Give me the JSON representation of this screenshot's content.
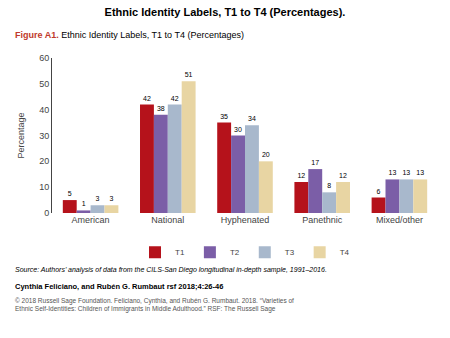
{
  "chart_data": {
    "type": "bar",
    "title": "Ethnic Identity Labels, T1 to T4 (Percentages).",
    "annotations": [
      {
        "text": "Figure A1.",
        "color": "#c0392b"
      },
      {
        "text": "Ethnic Identity Labels, T1 to T4 (Percentages)"
      },
      {
        "text": "Source: Authors’ analysis of data from the CILS-San Diego longitudinal in-depth sample, 1991–2016."
      },
      {
        "text": "Cynthia Feliciano, and Rubén G. Rumbaut rsf 2018;4:26-46"
      },
      {
        "text": "© 2018 Russell Sage Foundation. Feliciano, Cynthia, and Rubén G. Rumbaut. 2018. “Varieties of\nEthnic Self-Identities: Children of Immigrants in Middle Adulthood.” RSF: The Russell Sage",
        "color": "#555555"
      }
    ],
    "categories": [
      "American",
      "National",
      "Hyphenated",
      "Panethnic",
      "Mixed/other"
    ],
    "series": [
      {
        "name": "T1",
        "color": "#b5121b",
        "values": [
          5,
          42,
          35,
          12,
          6
        ]
      },
      {
        "name": "T2",
        "color": "#7b5ea7",
        "values": [
          1,
          38,
          30,
          17,
          13
        ]
      },
      {
        "name": "T3",
        "color": "#a8b8cc",
        "values": [
          3,
          42,
          34,
          8,
          13
        ]
      },
      {
        "name": "T4",
        "color": "#e8d5a3",
        "values": [
          3,
          51,
          20,
          12,
          13
        ]
      }
    ],
    "ylabel": "Percentage",
    "ylim": [
      0,
      60
    ],
    "yticks": [
      0,
      10,
      20,
      30,
      40,
      50,
      60
    ],
    "grid": false,
    "legend": "bottom",
    "data_labels": true
  }
}
